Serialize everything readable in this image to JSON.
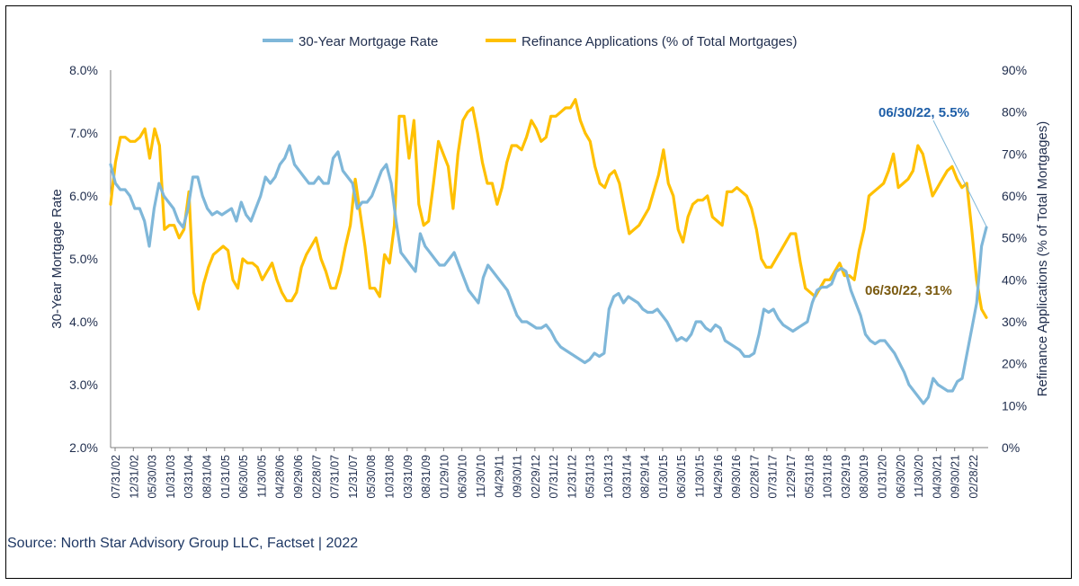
{
  "colors": {
    "rate": "#7fb7d9",
    "refi": "#ffc000",
    "axis_text": "#1f2d4d",
    "rate_annot": "#1f5fa8",
    "refi_annot": "#7a5a10",
    "source": "#1f3864"
  },
  "legend": {
    "rate": "30-Year Mortgage Rate",
    "refi": "Refinance Applications (% of Total Mortgages)"
  },
  "source": "Source: North Star Advisory Group LLC, Factset | 2022",
  "annotations": {
    "rate": "06/30/22, 5.5%",
    "refi": "06/30/22, 31%"
  },
  "chart_data": {
    "type": "line",
    "y_left": {
      "label": "30-Year Mortgage Rate",
      "min": 2.0,
      "max": 8.0,
      "ticks": [
        "2.0%",
        "3.0%",
        "4.0%",
        "5.0%",
        "6.0%",
        "7.0%",
        "8.0%"
      ]
    },
    "y_right": {
      "label": "Refinance Applications (% of Total Mortgages)",
      "min": 0,
      "max": 90,
      "ticks": [
        "0%",
        "10%",
        "20%",
        "30%",
        "40%",
        "50%",
        "60%",
        "70%",
        "80%",
        "90%"
      ]
    },
    "x_ticks": [
      "07/31/02",
      "12/31/02",
      "05/30/03",
      "10/31/03",
      "03/31/04",
      "08/31/04",
      "01/31/05",
      "06/30/05",
      "11/30/05",
      "04/28/06",
      "09/29/06",
      "02/28/07",
      "07/31/07",
      "12/31/07",
      "05/30/08",
      "10/31/08",
      "03/31/09",
      "08/31/09",
      "01/29/10",
      "06/30/10",
      "11/30/10",
      "04/29/11",
      "09/30/11",
      "02/29/12",
      "07/31/12",
      "12/31/12",
      "05/31/13",
      "10/31/13",
      "03/31/14",
      "08/29/14",
      "01/30/15",
      "06/30/15",
      "11/30/15",
      "04/29/16",
      "09/30/16",
      "02/28/17",
      "07/31/17",
      "12/29/17",
      "05/31/18",
      "10/31/18",
      "03/29/19",
      "08/30/19",
      "01/31/20",
      "06/30/20",
      "11/30/20",
      "04/30/21",
      "09/30/21",
      "02/28/22"
    ],
    "series": [
      {
        "name": "30-Year Mortgage Rate",
        "axis": "left",
        "step_months": 1,
        "values": [
          6.5,
          6.2,
          6.1,
          6.1,
          6.0,
          5.8,
          5.8,
          5.6,
          5.2,
          5.8,
          6.2,
          6.0,
          5.9,
          5.8,
          5.6,
          5.5,
          5.8,
          6.3,
          6.3,
          6.0,
          5.8,
          5.7,
          5.75,
          5.7,
          5.75,
          5.8,
          5.6,
          5.9,
          5.7,
          5.6,
          5.8,
          6.0,
          6.3,
          6.2,
          6.3,
          6.5,
          6.6,
          6.8,
          6.5,
          6.4,
          6.3,
          6.2,
          6.2,
          6.3,
          6.2,
          6.2,
          6.6,
          6.7,
          6.4,
          6.3,
          6.2,
          5.8,
          5.9,
          5.9,
          6.0,
          6.2,
          6.4,
          6.5,
          6.2,
          5.6,
          5.1,
          5.0,
          4.9,
          4.8,
          5.4,
          5.2,
          5.1,
          5.0,
          4.9,
          4.9,
          5.0,
          5.1,
          4.9,
          4.7,
          4.5,
          4.4,
          4.3,
          4.7,
          4.9,
          4.8,
          4.7,
          4.6,
          4.5,
          4.3,
          4.1,
          4.0,
          4.0,
          3.95,
          3.9,
          3.9,
          3.95,
          3.85,
          3.7,
          3.6,
          3.55,
          3.5,
          3.45,
          3.4,
          3.35,
          3.4,
          3.5,
          3.45,
          3.5,
          4.2,
          4.4,
          4.45,
          4.3,
          4.4,
          4.35,
          4.3,
          4.2,
          4.15,
          4.15,
          4.2,
          4.1,
          4.0,
          3.85,
          3.7,
          3.75,
          3.7,
          3.8,
          4.0,
          4.0,
          3.9,
          3.85,
          3.95,
          3.9,
          3.7,
          3.65,
          3.6,
          3.55,
          3.45,
          3.45,
          3.5,
          3.8,
          4.2,
          4.15,
          4.2,
          4.05,
          3.95,
          3.9,
          3.85,
          3.9,
          3.95,
          4.0,
          4.3,
          4.5,
          4.55,
          4.55,
          4.6,
          4.8,
          4.85,
          4.8,
          4.5,
          4.3,
          4.1,
          3.8,
          3.7,
          3.65,
          3.7,
          3.7,
          3.6,
          3.5,
          3.35,
          3.2,
          3.0,
          2.9,
          2.8,
          2.7,
          2.8,
          3.1,
          3.0,
          2.95,
          2.9,
          2.9,
          3.05,
          3.1,
          3.5,
          3.9,
          4.3,
          5.2,
          5.5
        ]
      },
      {
        "name": "Refinance Applications (% of Total Mortgages)",
        "axis": "right",
        "step_months": 1,
        "values": [
          58,
          68,
          74,
          74,
          73,
          73,
          74,
          76,
          69,
          76,
          72,
          52,
          53,
          53,
          50,
          52,
          61,
          37,
          33,
          39,
          43,
          46,
          47,
          48,
          47,
          40,
          38,
          45,
          44,
          44,
          43,
          40,
          42,
          44,
          40,
          37,
          35,
          35,
          37,
          43,
          46,
          48,
          50,
          45,
          42,
          38,
          38,
          42,
          48,
          53,
          64,
          56,
          48,
          38,
          38,
          36,
          46,
          44,
          53,
          79,
          79,
          69,
          78,
          58,
          53,
          54,
          63,
          73,
          70,
          67,
          57,
          70,
          78,
          80,
          81,
          75,
          68,
          63,
          63,
          58,
          62,
          68,
          72,
          72,
          71,
          74,
          78,
          76,
          73,
          74,
          79,
          79,
          80,
          81,
          81,
          83,
          78,
          75,
          73,
          67,
          63,
          62,
          65,
          66,
          63,
          57,
          51,
          52,
          53,
          55,
          57,
          61,
          65,
          71,
          63,
          60,
          52,
          49,
          55,
          58,
          59,
          59,
          60,
          55,
          54,
          53,
          61,
          61,
          62,
          61,
          60,
          57,
          52,
          45,
          43,
          43,
          45,
          47,
          49,
          51,
          51,
          44,
          38,
          37,
          36,
          38,
          40,
          40,
          42,
          44,
          41,
          41,
          40,
          47,
          52,
          60,
          61,
          62,
          63,
          66,
          70,
          62,
          63,
          64,
          66,
          72,
          70,
          65,
          60,
          62,
          64,
          66,
          67,
          64,
          62,
          63,
          52,
          40,
          33,
          31
        ]
      }
    ]
  }
}
